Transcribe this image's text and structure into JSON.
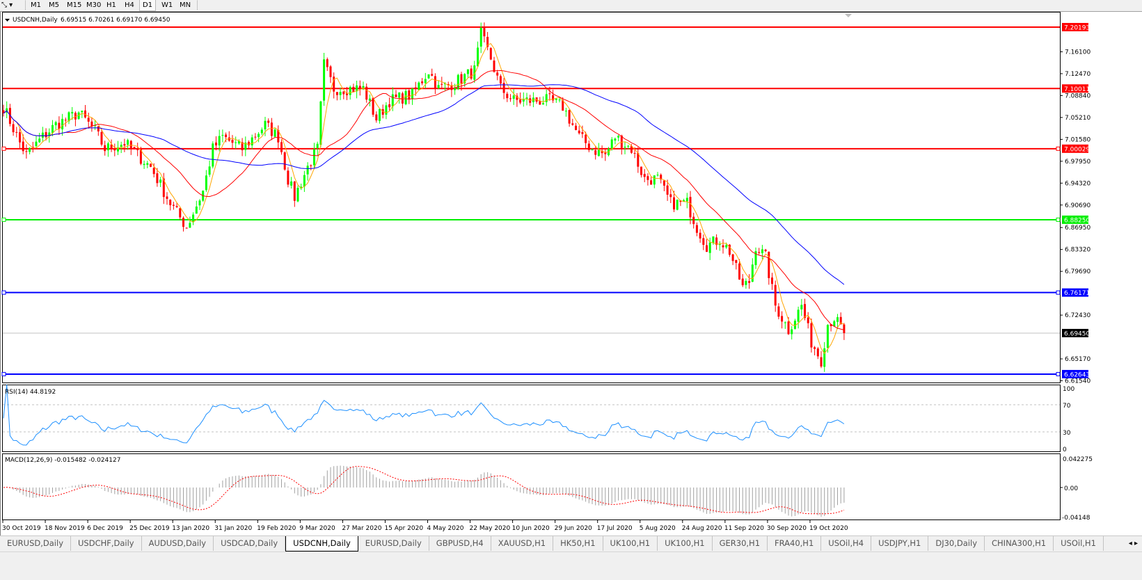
{
  "toolbar": {
    "tool_icon": "cursor-select-icon",
    "timeframes": [
      "M1",
      "M5",
      "M15",
      "M30",
      "H1",
      "H4",
      "D1",
      "W1",
      "MN"
    ],
    "active_timeframe": "D1"
  },
  "chart": {
    "title": "USDCNH,Daily",
    "ohlc": "6.69515 6.70261 6.69170 6.69450",
    "price_ticks": [
      "7.16100",
      "7.12470",
      "7.08840",
      "7.05210",
      "7.01580",
      "6.97950",
      "6.94320",
      "6.90690",
      "6.86950",
      "6.83320",
      "6.79690",
      "6.72430",
      "6.65170",
      "6.61540"
    ],
    "levels": [
      {
        "price": "7.20193",
        "color": "#ff0000"
      },
      {
        "price": "7.10011",
        "color": "#ff0000"
      },
      {
        "price": "7.00029",
        "color": "#ff0000"
      },
      {
        "price": "6.88250",
        "color": "#00ee00"
      },
      {
        "price": "6.76171",
        "color": "#0000ff"
      },
      {
        "price": "6.62643",
        "color": "#0000ff"
      }
    ],
    "current_price": "6.69450",
    "bull_color": "#00ff00",
    "bear_color": "#ff0000"
  },
  "rsi": {
    "label": "RSI(14) 44.8192",
    "ticks": [
      "100",
      "70",
      "30",
      "0"
    ],
    "color": "#1e90ff"
  },
  "macd": {
    "label": "MACD(12,26,9) -0.015482 -0.024127",
    "ticks": [
      "0.042275",
      "0.00",
      "-0.04148"
    ],
    "signal_color": "#ff0000",
    "histogram_color": "#a0a0a0"
  },
  "time_labels": [
    "30 Oct 2019",
    "18 Nov 2019",
    "6 Dec 2019",
    "25 Dec 2019",
    "13 Jan 2020",
    "31 Jan 2020",
    "19 Feb 2020",
    "9 Mar 2020",
    "27 Mar 2020",
    "15 Apr 2020",
    "4 May 2020",
    "22 May 2020",
    "10 Jun 2020",
    "29 Jun 2020",
    "17 Jul 2020",
    "5 Aug 2020",
    "24 Aug 2020",
    "11 Sep 2020",
    "30 Sep 2020",
    "19 Oct 2020"
  ],
  "tabs": [
    "EURUSD,Daily",
    "USDCHF,Daily",
    "AUDUSD,Daily",
    "USDCAD,Daily",
    "USDCNH,Daily",
    "EURUSD,Daily",
    "GBPUSD,H4",
    "XAUUSD,H1",
    "HK50,H1",
    "UK100,H1",
    "UK100,H1",
    "GER30,H1",
    "FRA40,H1",
    "USOil,H4",
    "USDJPY,H1",
    "DJ30,Daily",
    "CHINA300,H1",
    "USOil,H1"
  ],
  "active_tab": 4,
  "chart_data": {
    "type": "candlestick",
    "approx_close_path": [
      [
        0,
        7.07
      ],
      [
        5,
        7.01
      ],
      [
        7,
        6.99
      ],
      [
        12,
        7.02
      ],
      [
        16,
        7.04
      ],
      [
        23,
        7.06
      ],
      [
        28,
        7.03
      ],
      [
        31,
        7.0
      ],
      [
        37,
        7.01
      ],
      [
        45,
        6.97
      ],
      [
        51,
        6.91
      ],
      [
        56,
        6.87
      ],
      [
        61,
        6.93
      ],
      [
        64,
        7.0
      ],
      [
        67,
        7.02
      ],
      [
        73,
        7.0
      ],
      [
        80,
        7.04
      ],
      [
        84,
        7.02
      ],
      [
        87,
        6.95
      ],
      [
        89,
        6.92
      ],
      [
        93,
        6.97
      ],
      [
        96,
        7.0
      ],
      [
        98,
        7.14
      ],
      [
        101,
        7.1
      ],
      [
        105,
        7.1
      ],
      [
        110,
        7.1
      ],
      [
        114,
        7.05
      ],
      [
        118,
        7.08
      ],
      [
        125,
        7.09
      ],
      [
        130,
        7.13
      ],
      [
        133,
        7.1
      ],
      [
        138,
        7.11
      ],
      [
        144,
        7.13
      ],
      [
        146,
        7.19
      ],
      [
        149,
        7.15
      ],
      [
        152,
        7.1
      ],
      [
        156,
        7.08
      ],
      [
        163,
        7.08
      ],
      [
        167,
        7.08
      ],
      [
        171,
        7.07
      ],
      [
        176,
        7.02
      ],
      [
        180,
        7.0
      ],
      [
        184,
        6.99
      ],
      [
        187,
        7.02
      ],
      [
        192,
        7.0
      ],
      [
        196,
        6.95
      ],
      [
        200,
        6.95
      ],
      [
        204,
        6.91
      ],
      [
        209,
        6.91
      ],
      [
        212,
        6.87
      ],
      [
        215,
        6.84
      ],
      [
        219,
        6.85
      ],
      [
        222,
        6.83
      ],
      [
        226,
        6.77
      ],
      [
        228,
        6.78
      ],
      [
        230,
        6.84
      ],
      [
        233,
        6.82
      ],
      [
        236,
        6.74
      ],
      [
        240,
        6.7
      ],
      [
        244,
        6.74
      ],
      [
        247,
        6.68
      ],
      [
        250,
        6.65
      ],
      [
        252,
        6.71
      ],
      [
        254,
        6.72
      ],
      [
        257,
        6.6945
      ]
    ],
    "ylim": [
      6.6154,
      7.2019
    ]
  }
}
